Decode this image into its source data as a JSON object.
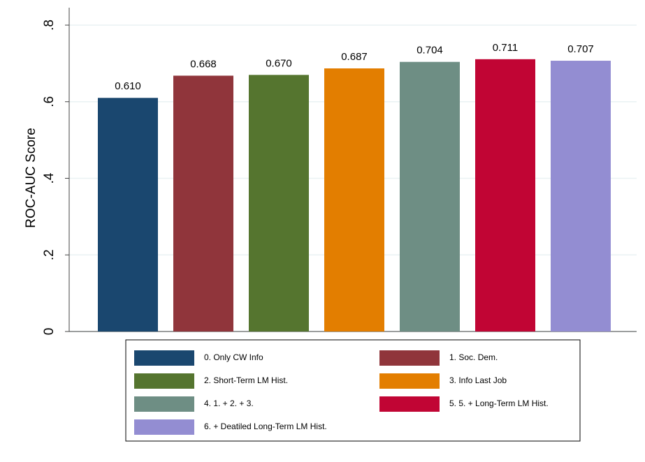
{
  "chart_data": {
    "type": "bar",
    "y_label": "ROC-AUC Score",
    "categories": [
      "0. Only CW Info",
      "1. Soc. Dem.",
      "2. Short-Term LM Hist.",
      "3. Info Last Job",
      "4. 1. + 2. + 3.",
      "5. 5. + Long-Term LM Hist.",
      "6. + Deatiled Long-Term LM Hist."
    ],
    "values": [
      0.61,
      0.668,
      0.67,
      0.687,
      0.704,
      0.711,
      0.707
    ],
    "value_labels": [
      "0.610",
      "0.668",
      "0.670",
      "0.687",
      "0.704",
      "0.711",
      "0.707"
    ],
    "colors": [
      "#1a476f",
      "#90353b",
      "#55752f",
      "#e37e00",
      "#6e8e84",
      "#c10534",
      "#938dd2"
    ],
    "ylim": [
      0,
      0.8
    ],
    "yticks": [
      0,
      {
        "value": 0.2,
        "label": ".2"
      },
      {
        "value": 0.4,
        "label": ".4"
      },
      {
        "value": 0.6,
        "label": ".6"
      },
      {
        "value": 0.8,
        "label": ".8"
      }
    ],
    "grid": true,
    "legend": "bottom"
  }
}
